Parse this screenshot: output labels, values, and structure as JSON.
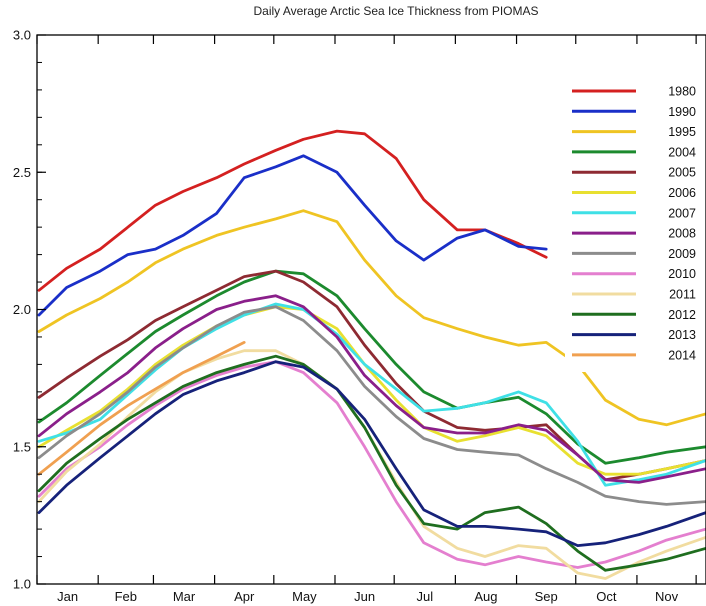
{
  "chart_data": {
    "type": "line",
    "title": "Daily Average Arctic Sea Ice Thickness from PIOMAS",
    "xlabel": "",
    "ylabel": "",
    "xlim": [
      0,
      339
    ],
    "ylim": [
      1.0,
      3.0
    ],
    "y_ticks": [
      1.0,
      1.5,
      2.0,
      2.5,
      3.0
    ],
    "y_tick_labels": [
      "1.0",
      "1.5",
      "2.0",
      "2.5",
      "3.0"
    ],
    "month_labels": [
      "Jan",
      "Feb",
      "Mar",
      "Apr",
      "May",
      "Jun",
      "Jul",
      "Aug",
      "Sep",
      "Oct",
      "Nov"
    ],
    "grid": false,
    "legend_position": "right",
    "x": [
      1,
      15,
      32,
      46,
      60,
      74,
      91,
      105,
      121,
      135,
      152,
      166,
      182,
      196,
      213,
      227,
      244,
      258,
      274,
      288,
      305,
      319,
      339
    ],
    "series": [
      {
        "name": "1980",
        "color": "#d42020",
        "values": [
          2.07,
          2.15,
          2.22,
          2.3,
          2.38,
          2.43,
          2.48,
          2.53,
          2.58,
          2.62,
          2.65,
          2.64,
          2.55,
          2.4,
          2.29,
          2.29,
          2.24,
          2.19,
          null,
          null,
          null,
          null,
          null
        ]
      },
      {
        "name": "1990",
        "color": "#1a2fc8",
        "values": [
          1.98,
          2.08,
          2.14,
          2.2,
          2.22,
          2.27,
          2.35,
          2.48,
          2.52,
          2.56,
          2.5,
          2.38,
          2.25,
          2.18,
          2.26,
          2.29,
          2.23,
          2.22,
          null,
          null,
          null,
          null,
          null
        ]
      },
      {
        "name": "1995",
        "color": "#efc423",
        "values": [
          1.92,
          1.98,
          2.04,
          2.1,
          2.17,
          2.22,
          2.27,
          2.3,
          2.33,
          2.36,
          2.32,
          2.18,
          2.05,
          1.97,
          1.93,
          1.9,
          1.87,
          1.88,
          1.8,
          1.67,
          1.6,
          1.58,
          1.62
        ]
      },
      {
        "name": "2004",
        "color": "#1c8a2e",
        "values": [
          1.59,
          1.66,
          1.76,
          1.84,
          1.92,
          1.98,
          2.05,
          2.1,
          2.14,
          2.13,
          2.05,
          1.93,
          1.8,
          1.7,
          1.64,
          1.66,
          1.68,
          1.62,
          1.51,
          1.44,
          1.46,
          1.48,
          1.5
        ]
      },
      {
        "name": "2005",
        "color": "#8e2a32",
        "values": [
          1.68,
          1.75,
          1.83,
          1.89,
          1.96,
          2.01,
          2.07,
          2.12,
          2.14,
          2.1,
          2.01,
          1.87,
          1.73,
          1.63,
          1.57,
          1.56,
          1.57,
          1.58,
          1.47,
          1.38,
          1.4,
          1.42,
          1.45
        ]
      },
      {
        "name": "2006",
        "color": "#e8e030",
        "values": [
          1.5,
          1.56,
          1.63,
          1.71,
          1.8,
          1.87,
          1.94,
          1.98,
          2.01,
          2.0,
          1.93,
          1.8,
          1.67,
          1.57,
          1.52,
          1.54,
          1.57,
          1.54,
          1.44,
          1.4,
          1.4,
          1.42,
          1.45
        ]
      },
      {
        "name": "2007",
        "color": "#3fe0e6",
        "values": [
          1.52,
          1.55,
          1.6,
          1.69,
          1.78,
          1.86,
          1.93,
          1.98,
          2.02,
          2.0,
          1.91,
          1.8,
          1.71,
          1.63,
          1.64,
          1.66,
          1.7,
          1.66,
          1.52,
          1.36,
          1.38,
          1.4,
          1.45
        ]
      },
      {
        "name": "2008",
        "color": "#8a1f8a",
        "values": [
          1.54,
          1.62,
          1.7,
          1.77,
          1.86,
          1.93,
          2.0,
          2.03,
          2.05,
          2.01,
          1.9,
          1.76,
          1.65,
          1.57,
          1.55,
          1.55,
          1.58,
          1.56,
          1.47,
          1.38,
          1.37,
          1.39,
          1.42
        ]
      },
      {
        "name": "2009",
        "color": "#8c8c8c",
        "values": [
          1.46,
          1.54,
          1.62,
          1.7,
          1.79,
          1.86,
          1.94,
          1.99,
          2.01,
          1.96,
          1.85,
          1.72,
          1.61,
          1.53,
          1.49,
          1.48,
          1.47,
          1.42,
          1.37,
          1.32,
          1.3,
          1.29,
          1.3
        ]
      },
      {
        "name": "2010",
        "color": "#e47fcf",
        "values": [
          1.32,
          1.42,
          1.5,
          1.58,
          1.65,
          1.71,
          1.76,
          1.79,
          1.81,
          1.77,
          1.66,
          1.5,
          1.3,
          1.15,
          1.09,
          1.07,
          1.1,
          1.08,
          1.06,
          1.08,
          1.12,
          1.16,
          1.2
        ]
      },
      {
        "name": "2011",
        "color": "#f1dca0",
        "values": [
          1.3,
          1.41,
          1.51,
          1.61,
          1.7,
          1.77,
          1.82,
          1.85,
          1.85,
          1.8,
          1.71,
          1.57,
          1.37,
          1.21,
          1.13,
          1.1,
          1.14,
          1.13,
          1.04,
          1.02,
          1.08,
          1.12,
          1.17
        ]
      },
      {
        "name": "2012",
        "color": "#1f6e1f",
        "values": [
          1.34,
          1.44,
          1.53,
          1.6,
          1.66,
          1.72,
          1.77,
          1.8,
          1.83,
          1.8,
          1.71,
          1.57,
          1.36,
          1.22,
          1.2,
          1.26,
          1.28,
          1.22,
          1.12,
          1.05,
          1.07,
          1.09,
          1.13
        ]
      },
      {
        "name": "2013",
        "color": "#16227a",
        "values": [
          1.26,
          1.36,
          1.46,
          1.54,
          1.62,
          1.69,
          1.74,
          1.77,
          1.81,
          1.79,
          1.71,
          1.6,
          1.42,
          1.27,
          1.21,
          1.21,
          1.2,
          1.19,
          1.14,
          1.15,
          1.18,
          1.21,
          1.26
        ]
      },
      {
        "name": "2014",
        "color": "#f0a050",
        "values": [
          1.4,
          1.48,
          1.58,
          1.65,
          1.71,
          1.77,
          1.83,
          1.88,
          null,
          null,
          null,
          null,
          null,
          null,
          null,
          null,
          null,
          null,
          null,
          null,
          null,
          null,
          null
        ]
      }
    ]
  }
}
